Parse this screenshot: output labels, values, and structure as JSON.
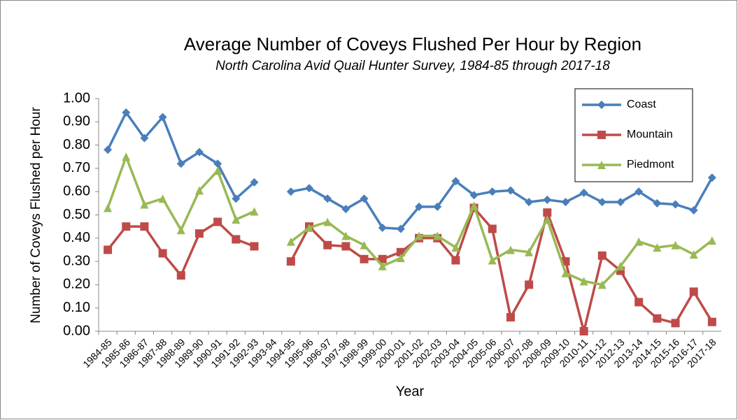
{
  "chart_data": {
    "type": "line",
    "title": "Average Number of Coveys Flushed Per Hour by Region",
    "subtitle": "North Carolina Avid Quail Hunter Survey, 1984-85 through 2017-18",
    "x_label": "Year",
    "y_label": "Number of Coveys Flushed per Hour",
    "categories": [
      "1984-85",
      "1985-86",
      "1986-87",
      "1987-88",
      "1988-89",
      "1989-90",
      "1990-91",
      "1991-92",
      "1992-93",
      "1993-94",
      "1994-95",
      "1995-96",
      "1996-97",
      "1997-98",
      "1998-99",
      "1999-00",
      "2000-01",
      "2001-02",
      "2002-03",
      "2003-04",
      "2004-05",
      "2005-06",
      "2006-07",
      "2007-08",
      "2008-09",
      "2009-10",
      "2010-11",
      "2011-12",
      "2012-13",
      "2013-14",
      "2014-15",
      "2015-16",
      "2016-17",
      "2017-18"
    ],
    "series": [
      {
        "name": "Coast",
        "color": "#4a7ebb",
        "marker": "diamond",
        "values": [
          0.78,
          0.94,
          0.83,
          0.92,
          0.72,
          0.77,
          0.72,
          0.57,
          0.64,
          null,
          0.6,
          0.615,
          0.57,
          0.525,
          0.57,
          0.445,
          0.44,
          0.535,
          0.535,
          0.645,
          0.585,
          0.6,
          0.605,
          0.555,
          0.565,
          0.555,
          0.595,
          0.555,
          0.555,
          0.6,
          0.55,
          0.545,
          0.52,
          0.66
        ]
      },
      {
        "name": "Mountain",
        "color": "#be4b48",
        "marker": "square",
        "values": [
          0.35,
          0.45,
          0.45,
          0.335,
          0.24,
          0.42,
          0.47,
          0.395,
          0.365,
          null,
          0.3,
          0.45,
          0.37,
          0.365,
          0.31,
          0.31,
          0.34,
          0.4,
          0.4,
          0.305,
          0.53,
          0.44,
          0.06,
          0.2,
          0.51,
          0.3,
          0.0,
          0.325,
          0.26,
          0.125,
          0.055,
          0.035,
          0.17,
          0.04
        ]
      },
      {
        "name": "Piedmont",
        "color": "#98b954",
        "marker": "triangle",
        "values": [
          0.53,
          0.75,
          0.545,
          0.57,
          0.435,
          0.605,
          0.69,
          0.48,
          0.515,
          null,
          0.385,
          0.445,
          0.47,
          0.41,
          0.37,
          0.28,
          0.315,
          0.41,
          0.41,
          0.36,
          0.54,
          0.305,
          0.35,
          0.34,
          0.48,
          0.25,
          0.215,
          0.2,
          0.28,
          0.385,
          0.36,
          0.37,
          0.33,
          0.39
        ]
      }
    ],
    "ylim": [
      0,
      1
    ],
    "yticks": [
      {
        "value": 0,
        "label": "0.00"
      },
      {
        "value": 0.1,
        "label": "0.10"
      },
      {
        "value": 0.2,
        "label": "0.20"
      },
      {
        "value": 0.3,
        "label": "0.30"
      },
      {
        "value": 0.4,
        "label": "0.40"
      },
      {
        "value": 0.5,
        "label": "0.50"
      },
      {
        "value": 0.6,
        "label": "0.60"
      },
      {
        "value": 0.7,
        "label": "0.70"
      },
      {
        "value": 0.8,
        "label": "0.80"
      },
      {
        "value": 0.9,
        "label": "0.90"
      },
      {
        "value": 1,
        "label": "1.00"
      }
    ],
    "grid": false,
    "legend": "top-right"
  }
}
